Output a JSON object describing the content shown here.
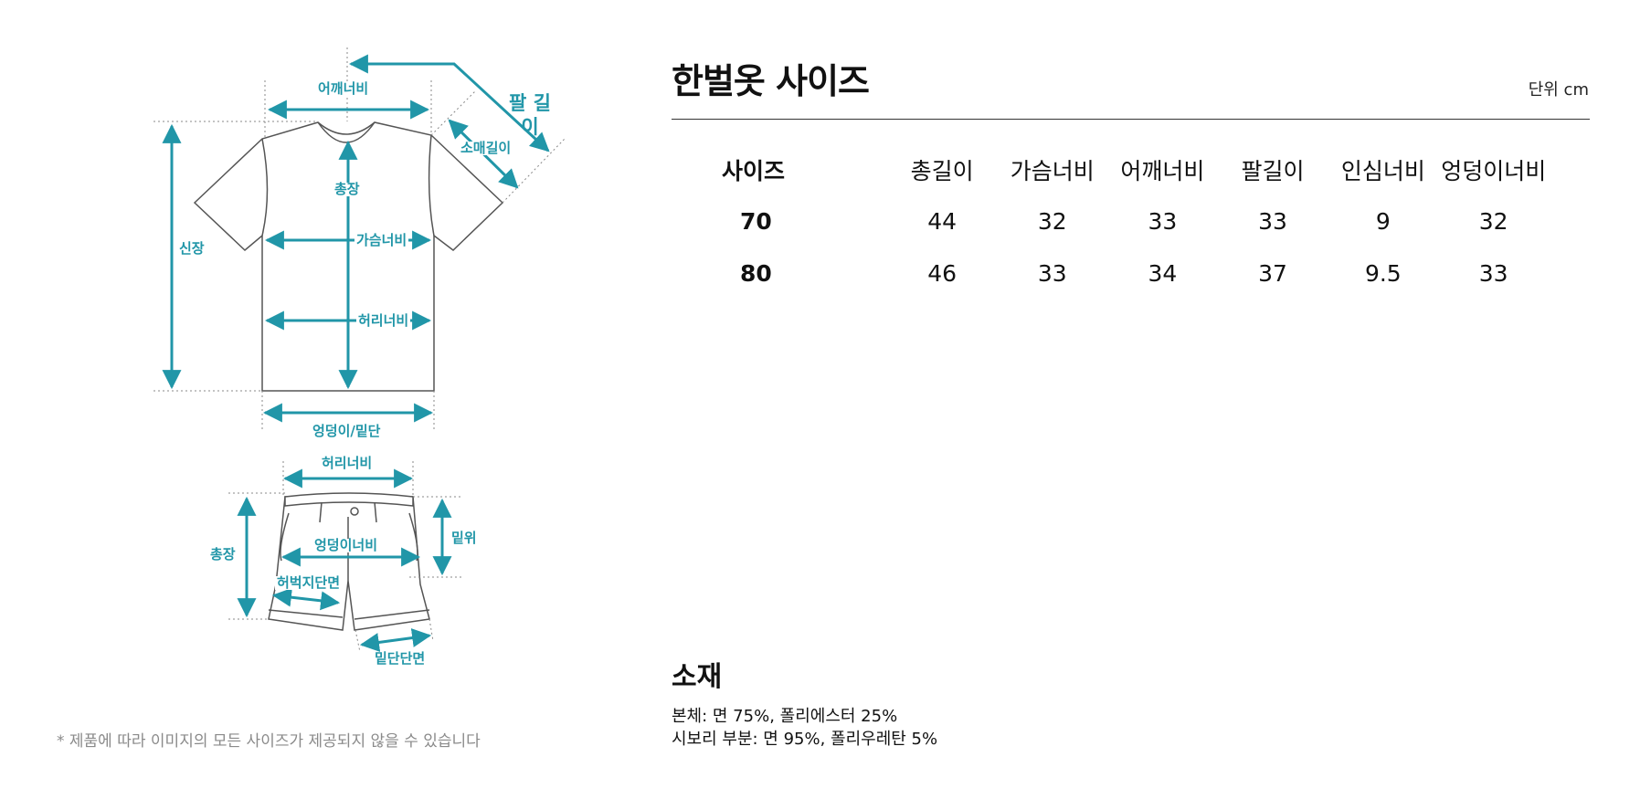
{
  "diagram": {
    "top_labels": {
      "shoulder": "어깨너비",
      "sleeve_length_big": "팔 길이",
      "sleeve": "소매길이",
      "height": "신장",
      "length": "총장",
      "chest": "가슴너비",
      "waist": "허리너비",
      "hip_hem": "엉덩이/밑단"
    },
    "bottom_labels": {
      "waist": "허리너비",
      "length": "총장",
      "rise": "밑위",
      "hip": "엉덩이너비",
      "thigh": "허벅지단면",
      "hem": "밑단단면"
    },
    "accent_color": "#2196a8"
  },
  "note": "* 제품에 따라 이미지의 모든 사이즈가 제공되지 않을 수 있습니다",
  "title": "한벌옷 사이즈",
  "unit": "단위 cm",
  "table": {
    "headers": [
      "사이즈",
      "총길이",
      "가슴너비",
      "어깨너비",
      "팔길이",
      "인심너비",
      "엉덩이너비"
    ],
    "rows": [
      [
        "70",
        "44",
        "32",
        "33",
        "33",
        "9",
        "32"
      ],
      [
        "80",
        "46",
        "33",
        "34",
        "37",
        "9.5",
        "33"
      ]
    ]
  },
  "material": {
    "title": "소재",
    "lines": [
      "본체: 면 75%, 폴리에스터 25%",
      "시보리 부분: 면 95%, 폴리우레탄 5%"
    ]
  }
}
